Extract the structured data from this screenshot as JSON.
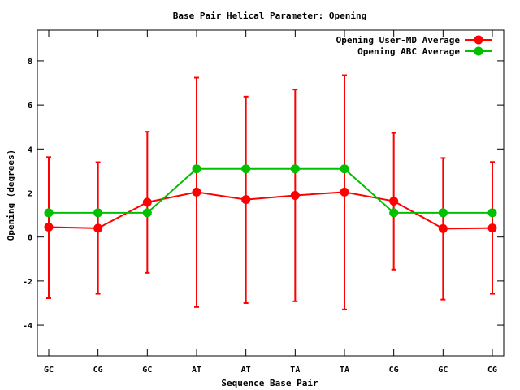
{
  "chart_data": {
    "type": "line",
    "title": "Base Pair Helical Parameter: Opening",
    "xlabel": "Sequence Base Pair",
    "ylabel": "Opening (degrees)",
    "categories": [
      "GC",
      "CG",
      "GC",
      "AT",
      "AT",
      "TA",
      "TA",
      "CG",
      "GC",
      "CG"
    ],
    "ylim": [
      -5.4,
      9.4
    ],
    "yticks": [
      -4,
      -2,
      0,
      2,
      4,
      6,
      8
    ],
    "grid": false,
    "legend_position": "top-right",
    "series": [
      {
        "name": "Opening User-MD Average",
        "color": "#ff0000",
        "values": [
          0.45,
          0.4,
          1.58,
          2.04,
          1.7,
          1.89,
          2.04,
          1.63,
          0.38,
          0.41
        ],
        "error_low": [
          -2.78,
          -2.58,
          -1.63,
          -3.18,
          -3.0,
          -2.92,
          -3.29,
          -1.48,
          -2.84,
          -2.58
        ],
        "error_high": [
          3.63,
          3.4,
          4.78,
          7.24,
          6.38,
          6.7,
          7.35,
          4.73,
          3.59,
          3.41
        ]
      },
      {
        "name": "Opening ABC Average",
        "color": "#00c000",
        "values": [
          1.1,
          1.1,
          1.1,
          3.1,
          3.1,
          3.1,
          3.1,
          1.1,
          1.1,
          1.1
        ]
      }
    ]
  }
}
